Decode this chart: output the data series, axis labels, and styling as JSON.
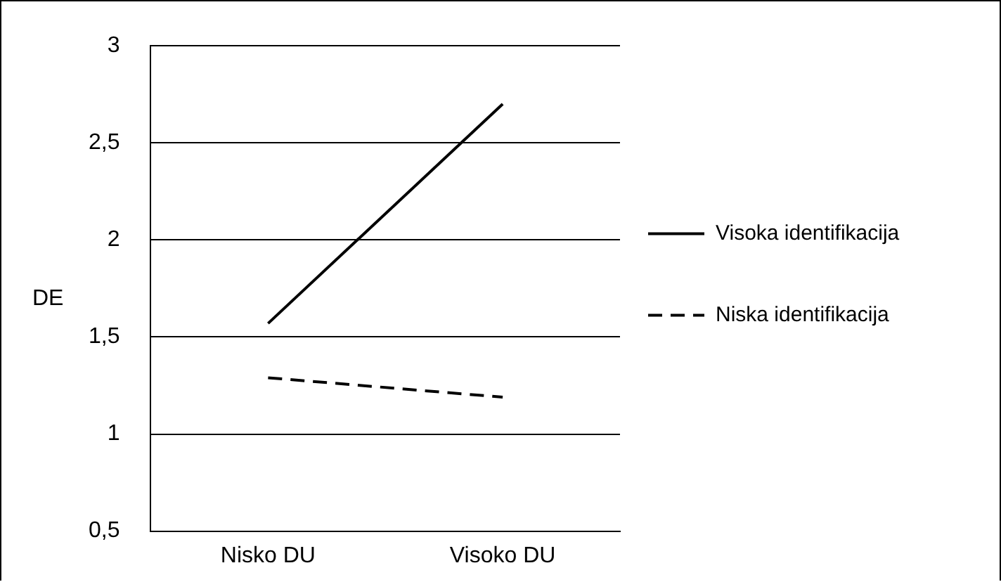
{
  "chart_data": {
    "type": "line",
    "ylabel": "DE",
    "categories": [
      "Nisko DU",
      "Visoko DU"
    ],
    "series": [
      {
        "name": "Visoka identifikacija",
        "color": "#000000",
        "line_style": "solid",
        "values": [
          1.57,
          2.7
        ]
      },
      {
        "name": "Niska identifikacija",
        "color": "#000000",
        "line_style": "dashed",
        "values": [
          1.29,
          1.19
        ]
      }
    ],
    "ylim": [
      0.5,
      3
    ],
    "yticks": [
      {
        "value": 0.5,
        "label": "0,5"
      },
      1,
      {
        "value": 1.5,
        "label": "1,5"
      },
      2,
      {
        "value": 2.5,
        "label": "2,5"
      },
      3
    ],
    "grid": "y",
    "legend": "right",
    "marker": "none"
  }
}
